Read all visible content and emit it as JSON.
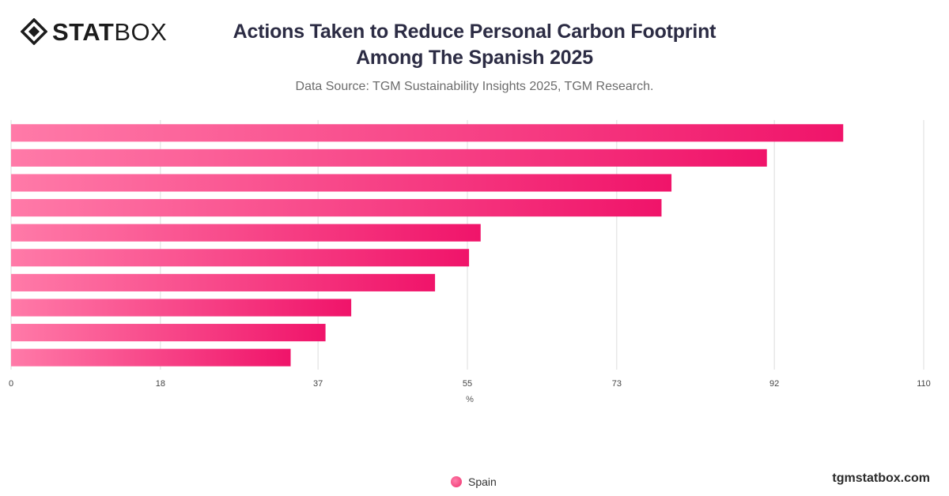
{
  "brand": {
    "strong": "STAT",
    "light": "BOX"
  },
  "header": {
    "title_line1": "Actions Taken to Reduce Personal Carbon Footprint",
    "title_line2": "Among The Spanish 2025",
    "subtitle": "Data Source: TGM Sustainability Insights 2025, TGM Research."
  },
  "chart_data": {
    "type": "bar",
    "orientation": "horizontal",
    "categories": [
      "",
      "",
      "",
      "",
      "",
      "",
      "",
      "",
      "",
      ""
    ],
    "series": [
      {
        "name": "Spain",
        "values": [
          100.3,
          91.1,
          79.6,
          78.4,
          56.6,
          55.2,
          51.1,
          41.0,
          37.9,
          33.7
        ]
      }
    ],
    "xlabel": "%",
    "xlim": [
      0,
      110
    ],
    "xticks": [
      0,
      18,
      37,
      55,
      73,
      92,
      110
    ],
    "grid": true,
    "legend_position": "bottom",
    "bar_color_start": "#ff7aa8",
    "bar_color_end": "#f0146a"
  },
  "legend": {
    "label": "Spain"
  },
  "watermark": "tgmstatbox.com"
}
